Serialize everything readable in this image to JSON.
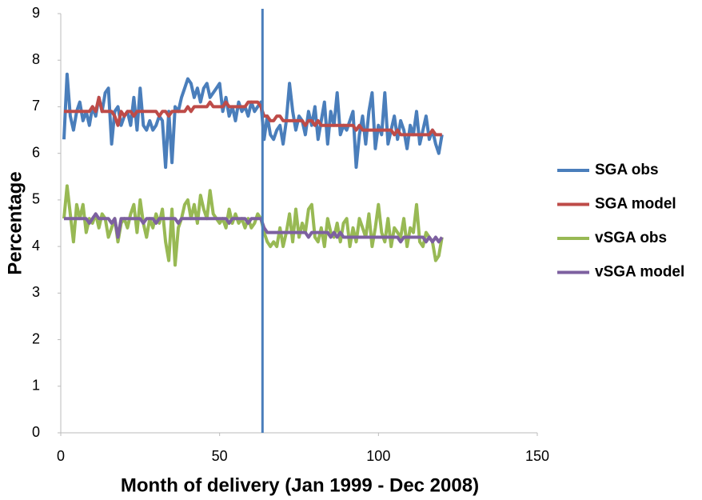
{
  "chart_data": {
    "type": "line",
    "x_label": "Month of delivery (Jan 1999 - Dec 2008)",
    "y_label": "Percentage",
    "x": [
      1,
      2,
      3,
      4,
      5,
      6,
      7,
      8,
      9,
      10,
      11,
      12,
      13,
      14,
      15,
      16,
      17,
      18,
      19,
      20,
      21,
      22,
      23,
      24,
      25,
      26,
      27,
      28,
      29,
      30,
      31,
      32,
      33,
      34,
      35,
      36,
      37,
      38,
      39,
      40,
      41,
      42,
      43,
      44,
      45,
      46,
      47,
      48,
      49,
      50,
      51,
      52,
      53,
      54,
      55,
      56,
      57,
      58,
      59,
      60,
      61,
      62,
      63,
      64,
      65,
      66,
      67,
      68,
      69,
      70,
      71,
      72,
      73,
      74,
      75,
      76,
      77,
      78,
      79,
      80,
      81,
      82,
      83,
      84,
      85,
      86,
      87,
      88,
      89,
      90,
      91,
      92,
      93,
      94,
      95,
      96,
      97,
      98,
      99,
      100,
      101,
      102,
      103,
      104,
      105,
      106,
      107,
      108,
      109,
      110,
      111,
      112,
      113,
      114,
      115,
      116,
      117,
      118,
      119,
      120
    ],
    "series": [
      {
        "name": "SGA obs",
        "color": "#4a7ebb",
        "values": [
          6.3,
          7.7,
          6.8,
          6.5,
          6.9,
          7.1,
          6.7,
          6.9,
          6.6,
          7.0,
          6.8,
          7.2,
          6.9,
          7.3,
          7.4,
          6.2,
          6.9,
          7.0,
          6.6,
          6.8,
          6.9,
          6.6,
          7.2,
          6.5,
          7.4,
          6.6,
          6.5,
          6.7,
          6.5,
          6.6,
          6.8,
          6.7,
          5.7,
          6.9,
          5.8,
          7.0,
          6.9,
          7.2,
          7.4,
          7.6,
          7.5,
          7.2,
          7.4,
          7.1,
          7.4,
          7.5,
          7.2,
          7.3,
          7.4,
          7.5,
          6.9,
          7.2,
          6.8,
          7.0,
          6.7,
          7.1,
          6.9,
          7.0,
          6.8,
          7.1,
          6.9,
          7.0,
          7.1,
          6.3,
          6.8,
          6.4,
          6.3,
          6.5,
          6.6,
          6.2,
          6.7,
          7.5,
          6.9,
          6.5,
          6.8,
          6.7,
          6.4,
          6.9,
          6.6,
          7.0,
          6.3,
          6.7,
          7.1,
          6.2,
          6.9,
          6.6,
          7.3,
          6.4,
          6.6,
          6.5,
          6.7,
          6.9,
          5.7,
          6.4,
          6.8,
          6.2,
          6.9,
          7.3,
          6.1,
          6.6,
          6.4,
          7.3,
          6.2,
          6.5,
          6.8,
          6.3,
          6.7,
          6.5,
          6.1,
          6.6,
          6.4,
          6.9,
          6.2,
          6.5,
          6.8,
          6.3,
          6.5,
          6.2,
          6.0,
          6.4
        ]
      },
      {
        "name": "SGA model",
        "color": "#be4b48",
        "values": [
          6.9,
          6.9,
          6.9,
          6.9,
          6.9,
          6.9,
          6.9,
          6.9,
          6.9,
          7.0,
          6.9,
          7.2,
          6.9,
          6.9,
          6.9,
          6.9,
          6.8,
          6.6,
          6.9,
          6.8,
          6.9,
          6.9,
          6.8,
          6.9,
          6.9,
          6.9,
          6.9,
          6.9,
          6.9,
          6.9,
          6.8,
          6.9,
          6.9,
          6.8,
          6.9,
          6.9,
          6.9,
          6.9,
          6.9,
          7.0,
          6.9,
          7.0,
          7.0,
          7.0,
          7.0,
          7.0,
          7.1,
          7.0,
          7.0,
          7.0,
          7.0,
          7.1,
          7.0,
          7.0,
          7.0,
          7.0,
          7.0,
          7.0,
          7.1,
          7.1,
          7.1,
          7.1,
          7.0,
          6.8,
          6.8,
          6.7,
          6.7,
          6.8,
          6.8,
          6.7,
          6.7,
          6.7,
          6.7,
          6.7,
          6.7,
          6.7,
          6.6,
          6.7,
          6.7,
          6.6,
          6.7,
          6.6,
          6.6,
          6.6,
          6.6,
          6.6,
          6.6,
          6.6,
          6.6,
          6.6,
          6.6,
          6.6,
          6.5,
          6.6,
          6.5,
          6.5,
          6.5,
          6.5,
          6.5,
          6.5,
          6.5,
          6.5,
          6.5,
          6.5,
          6.4,
          6.5,
          6.4,
          6.4,
          6.4,
          6.4,
          6.4,
          6.4,
          6.4,
          6.4,
          6.4,
          6.4,
          6.5,
          6.4,
          6.4,
          6.4
        ]
      },
      {
        "name": "vSGA obs",
        "color": "#98b954",
        "values": [
          4.6,
          5.3,
          4.7,
          4.1,
          4.9,
          4.6,
          4.9,
          4.3,
          4.6,
          4.5,
          4.7,
          4.4,
          4.7,
          4.6,
          4.2,
          4.4,
          4.6,
          4.1,
          4.5,
          4.6,
          4.4,
          4.7,
          4.9,
          4.3,
          5.0,
          4.5,
          4.2,
          4.6,
          4.4,
          4.7,
          4.5,
          4.8,
          4.1,
          3.7,
          4.8,
          3.6,
          4.4,
          4.6,
          4.9,
          5.0,
          4.6,
          4.9,
          4.5,
          5.1,
          4.8,
          4.6,
          5.2,
          4.7,
          4.6,
          4.5,
          4.6,
          4.4,
          4.8,
          4.5,
          4.7,
          4.5,
          4.6,
          4.4,
          4.6,
          4.4,
          4.5,
          4.7,
          4.6,
          4.3,
          4.1,
          4.0,
          4.1,
          4.0,
          4.4,
          4.0,
          4.3,
          4.7,
          4.1,
          4.8,
          4.2,
          4.5,
          4.3,
          4.8,
          4.9,
          4.2,
          4.1,
          4.4,
          4.0,
          4.6,
          4.3,
          4.2,
          4.5,
          4.1,
          4.5,
          4.6,
          4.0,
          4.4,
          4.1,
          4.6,
          4.4,
          4.2,
          4.7,
          4.0,
          4.4,
          4.9,
          4.3,
          4.1,
          4.6,
          4.0,
          4.4,
          4.3,
          4.2,
          4.6,
          4.0,
          4.4,
          4.3,
          4.9,
          4.1,
          4.0,
          4.3,
          4.2,
          4.1,
          3.7,
          3.8,
          4.2
        ]
      },
      {
        "name": "vSGA model",
        "color": "#7d60a0",
        "values": [
          4.6,
          4.6,
          4.6,
          4.6,
          4.6,
          4.6,
          4.6,
          4.6,
          4.5,
          4.6,
          4.7,
          4.6,
          4.6,
          4.6,
          4.6,
          4.5,
          4.6,
          4.2,
          4.6,
          4.6,
          4.6,
          4.6,
          4.6,
          4.6,
          4.6,
          4.5,
          4.6,
          4.6,
          4.6,
          4.5,
          4.6,
          4.6,
          4.6,
          4.6,
          4.6,
          4.6,
          4.5,
          4.6,
          4.6,
          4.6,
          4.6,
          4.6,
          4.6,
          4.6,
          4.6,
          4.6,
          4.6,
          4.6,
          4.6,
          4.6,
          4.6,
          4.6,
          4.5,
          4.6,
          4.6,
          4.6,
          4.6,
          4.6,
          4.5,
          4.6,
          4.6,
          4.6,
          4.6,
          4.4,
          4.3,
          4.3,
          4.3,
          4.3,
          4.3,
          4.3,
          4.3,
          4.3,
          4.3,
          4.3,
          4.3,
          4.3,
          4.3,
          4.2,
          4.3,
          4.3,
          4.3,
          4.3,
          4.3,
          4.3,
          4.2,
          4.3,
          4.2,
          4.3,
          4.2,
          4.2,
          4.2,
          4.2,
          4.2,
          4.2,
          4.2,
          4.2,
          4.2,
          4.2,
          4.2,
          4.2,
          4.2,
          4.2,
          4.2,
          4.2,
          4.2,
          4.2,
          4.1,
          4.2,
          4.2,
          4.2,
          4.2,
          4.2,
          4.2,
          4.2,
          4.1,
          4.2,
          4.1,
          4.2,
          4.1,
          4.2
        ]
      }
    ],
    "vline": 63.5,
    "vline_color": "#4a7ebb",
    "xlim": [
      0,
      150
    ],
    "xticks": [
      0,
      50,
      100,
      150
    ],
    "ylim": [
      0,
      9
    ],
    "yticks": [
      0,
      1,
      2,
      3,
      4,
      5,
      6,
      7,
      8,
      9
    ],
    "grid": false,
    "legend": "right"
  }
}
